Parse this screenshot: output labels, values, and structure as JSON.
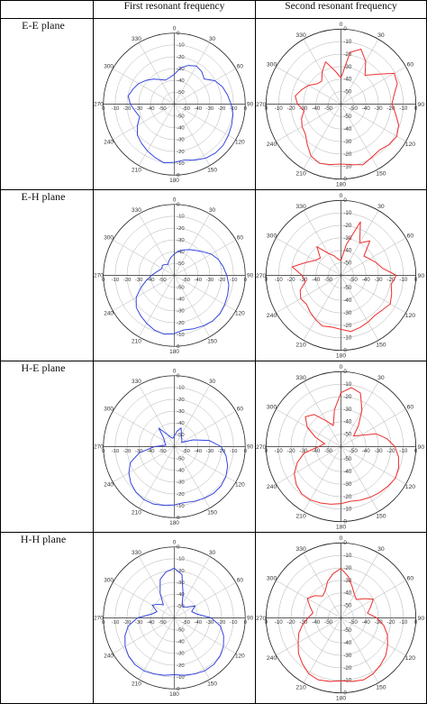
{
  "header": {
    "col0": "",
    "col1": "First resonant frequency",
    "col2": "Second resonant frequency"
  },
  "rows": [
    {
      "label": "E-E plane"
    },
    {
      "label": "E-H plane"
    },
    {
      "label": "H-E plane"
    },
    {
      "label": "H-H plane"
    }
  ],
  "chart_data": {
    "type": "polar",
    "angle_ticks": [
      "0",
      "30",
      "60",
      "90",
      "120",
      "150",
      "180",
      "210",
      "240",
      "270",
      "300",
      "330"
    ],
    "radial_ticks": [
      "0",
      "-10",
      "-20",
      "-30",
      "-40",
      "-50"
    ],
    "series_colors": {
      "first": "#3344dd",
      "second": "#ee3333"
    },
    "plots": [
      {
        "row": "E-E plane",
        "column": "First resonant frequency",
        "color": "#3344dd",
        "r": [
          0.42,
          0.52,
          0.58,
          0.62,
          0.6,
          0.55,
          0.66,
          0.72,
          0.76,
          0.8,
          0.84,
          0.86,
          0.88,
          0.9,
          0.9,
          0.88,
          0.84,
          0.8,
          0.82,
          0.84,
          0.8,
          0.76,
          0.72,
          0.68,
          0.6,
          0.52,
          0.56,
          0.62,
          0.66,
          0.62,
          0.58,
          0.52,
          0.46,
          0.4,
          0.36,
          0.38
        ]
      },
      {
        "row": "E-E plane",
        "column": "Second resonant frequency",
        "color": "#ee3333",
        "r": [
          0.35,
          0.7,
          0.78,
          0.66,
          0.5,
          0.62,
          0.82,
          0.8,
          0.72,
          0.68,
          0.74,
          0.82,
          0.86,
          0.84,
          0.8,
          0.82,
          0.86,
          0.82,
          0.8,
          0.82,
          0.84,
          0.8,
          0.7,
          0.62,
          0.6,
          0.56,
          0.5,
          0.58,
          0.62,
          0.56,
          0.5,
          0.42,
          0.4,
          0.5,
          0.6,
          0.45
        ]
      },
      {
        "row": "E-H plane",
        "column": "First resonant frequency",
        "color": "#3344dd",
        "r": [
          0.3,
          0.35,
          0.38,
          0.42,
          0.46,
          0.52,
          0.6,
          0.66,
          0.7,
          0.74,
          0.78,
          0.8,
          0.82,
          0.84,
          0.84,
          0.82,
          0.8,
          0.78,
          0.82,
          0.84,
          0.82,
          0.78,
          0.74,
          0.7,
          0.62,
          0.5,
          0.4,
          0.32,
          0.26,
          0.22,
          0.2,
          0.22,
          0.2,
          0.18,
          0.22,
          0.26
        ]
      },
      {
        "row": "E-H plane",
        "column": "Second resonant frequency",
        "color": "#ee3333",
        "r": [
          0.2,
          0.42,
          0.76,
          0.5,
          0.6,
          0.4,
          0.44,
          0.5,
          0.56,
          0.74,
          0.68,
          0.72,
          0.76,
          0.72,
          0.7,
          0.72,
          0.74,
          0.76,
          0.72,
          0.7,
          0.72,
          0.68,
          0.64,
          0.6,
          0.62,
          0.58,
          0.48,
          0.52,
          0.66,
          0.5,
          0.4,
          0.36,
          0.5,
          0.34,
          0.28,
          0.22
        ]
      },
      {
        "row": "H-E plane",
        "column": "First resonant frequency",
        "color": "#3344dd",
        "r": [
          0.15,
          0.22,
          0.28,
          0.2,
          0.16,
          0.14,
          0.12,
          0.28,
          0.5,
          0.66,
          0.74,
          0.8,
          0.84,
          0.86,
          0.86,
          0.84,
          0.82,
          0.8,
          0.82,
          0.84,
          0.86,
          0.86,
          0.84,
          0.8,
          0.74,
          0.66,
          0.5,
          0.28,
          0.12,
          0.14,
          0.16,
          0.2,
          0.34,
          0.2,
          0.14,
          0.12
        ]
      },
      {
        "row": "H-E plane",
        "column": "Second resonant frequency",
        "color": "#ee3333",
        "r": [
          0.72,
          0.8,
          0.76,
          0.56,
          0.36,
          0.22,
          0.3,
          0.5,
          0.62,
          0.72,
          0.78,
          0.82,
          0.84,
          0.82,
          0.8,
          0.78,
          0.76,
          0.74,
          0.76,
          0.78,
          0.8,
          0.82,
          0.82,
          0.78,
          0.72,
          0.62,
          0.5,
          0.3,
          0.22,
          0.36,
          0.52,
          0.62,
          0.56,
          0.4,
          0.3,
          0.5
        ]
      },
      {
        "row": "H-H plane",
        "column": "First resonant frequency",
        "color": "#3344dd",
        "r": [
          0.7,
          0.62,
          0.36,
          0.22,
          0.2,
          0.24,
          0.34,
          0.26,
          0.32,
          0.52,
          0.66,
          0.74,
          0.8,
          0.84,
          0.86,
          0.86,
          0.84,
          0.82,
          0.8,
          0.82,
          0.84,
          0.86,
          0.86,
          0.84,
          0.8,
          0.74,
          0.66,
          0.52,
          0.32,
          0.26,
          0.36,
          0.3,
          0.24,
          0.4,
          0.58,
          0.66
        ]
      },
      {
        "row": "H-H plane",
        "column": "Second resonant frequency",
        "color": "#ee3333",
        "r": [
          0.66,
          0.56,
          0.44,
          0.36,
          0.32,
          0.4,
          0.5,
          0.42,
          0.36,
          0.48,
          0.58,
          0.66,
          0.72,
          0.78,
          0.82,
          0.86,
          0.88,
          0.86,
          0.84,
          0.86,
          0.88,
          0.86,
          0.8,
          0.74,
          0.66,
          0.6,
          0.52,
          0.44,
          0.38,
          0.44,
          0.52,
          0.46,
          0.38,
          0.42,
          0.52,
          0.6
        ]
      }
    ]
  }
}
